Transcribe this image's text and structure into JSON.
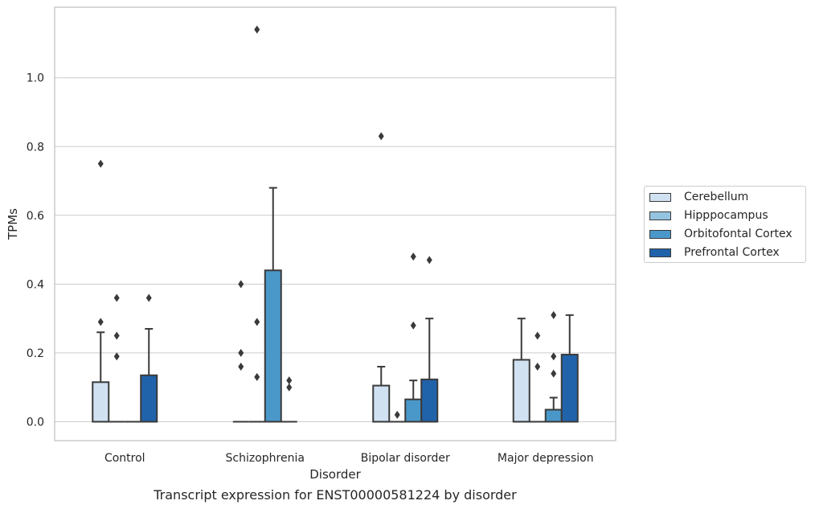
{
  "chart_data": {
    "type": "box",
    "xlabel": "Disorder",
    "ylabel": "TPMs",
    "caption": "Transcript expression for ENST00000581224 by disorder",
    "ylim": [
      -0.055,
      1.205
    ],
    "yticks": [
      "0.0",
      "0.2",
      "0.4",
      "0.6",
      "0.8",
      "1.0"
    ],
    "grid": true,
    "legend_position": "right",
    "categories": [
      "Control",
      "Schizophrenia",
      "Bipolar disorder",
      "Major depression"
    ],
    "series": [
      {
        "name": "Cerebellum",
        "color": "#d0e1f2",
        "boxes": [
          {
            "q1": 0.0,
            "median": 0.0,
            "q3": 0.115,
            "whisker_low": 0.0,
            "whisker_high": 0.26,
            "outliers": [
              0.75,
              0.29
            ]
          },
          {
            "q1": 0.0,
            "median": 0.0,
            "q3": 0.0,
            "whisker_low": 0.0,
            "whisker_high": 0.0,
            "outliers": [
              0.4,
              0.2,
              0.16
            ]
          },
          {
            "q1": 0.0,
            "median": 0.0,
            "q3": 0.105,
            "whisker_low": 0.0,
            "whisker_high": 0.16,
            "outliers": [
              0.83
            ]
          },
          {
            "q1": 0.0,
            "median": 0.0,
            "q3": 0.18,
            "whisker_low": 0.0,
            "whisker_high": 0.3,
            "outliers": []
          }
        ]
      },
      {
        "name": "Hipppocampus",
        "color": "#94c4df",
        "boxes": [
          {
            "q1": 0.0,
            "median": 0.0,
            "q3": 0.0,
            "whisker_low": 0.0,
            "whisker_high": 0.0,
            "outliers": [
              0.36,
              0.25,
              0.19
            ]
          },
          {
            "q1": 0.0,
            "median": 0.0,
            "q3": 0.0,
            "whisker_low": 0.0,
            "whisker_high": 0.0,
            "outliers": [
              1.14,
              0.29,
              0.13
            ]
          },
          {
            "q1": 0.0,
            "median": 0.0,
            "q3": 0.0,
            "whisker_low": 0.0,
            "whisker_high": 0.0,
            "outliers": [
              0.02
            ]
          },
          {
            "q1": 0.0,
            "median": 0.0,
            "q3": 0.0,
            "whisker_low": 0.0,
            "whisker_high": 0.0,
            "outliers": [
              0.25,
              0.16
            ]
          }
        ]
      },
      {
        "name": "Orbitofontal Cortex",
        "color": "#4a98c9",
        "boxes": [
          {
            "q1": 0.0,
            "median": 0.0,
            "q3": 0.0,
            "whisker_low": 0.0,
            "whisker_high": 0.0,
            "outliers": []
          },
          {
            "q1": 0.0,
            "median": 0.0,
            "q3": 0.44,
            "whisker_low": 0.0,
            "whisker_high": 0.68,
            "outliers": []
          },
          {
            "q1": 0.0,
            "median": 0.0,
            "q3": 0.065,
            "whisker_low": 0.0,
            "whisker_high": 0.12,
            "outliers": [
              0.48,
              0.28
            ]
          },
          {
            "q1": 0.0,
            "median": 0.0,
            "q3": 0.035,
            "whisker_low": 0.0,
            "whisker_high": 0.07,
            "outliers": [
              0.31,
              0.19,
              0.14
            ]
          }
        ]
      },
      {
        "name": "Prefrontal Cortex",
        "color": "#2163aa",
        "boxes": [
          {
            "q1": 0.0,
            "median": 0.0,
            "q3": 0.135,
            "whisker_low": 0.0,
            "whisker_high": 0.27,
            "outliers": [
              0.36
            ]
          },
          {
            "q1": 0.0,
            "median": 0.0,
            "q3": 0.0,
            "whisker_low": 0.0,
            "whisker_high": 0.0,
            "outliers": [
              0.12,
              0.1
            ]
          },
          {
            "q1": 0.0,
            "median": 0.0,
            "q3": 0.123,
            "whisker_low": 0.0,
            "whisker_high": 0.3,
            "outliers": [
              0.47
            ]
          },
          {
            "q1": 0.0,
            "median": 0.0,
            "q3": 0.195,
            "whisker_low": 0.0,
            "whisker_high": 0.31,
            "outliers": []
          }
        ]
      }
    ]
  }
}
